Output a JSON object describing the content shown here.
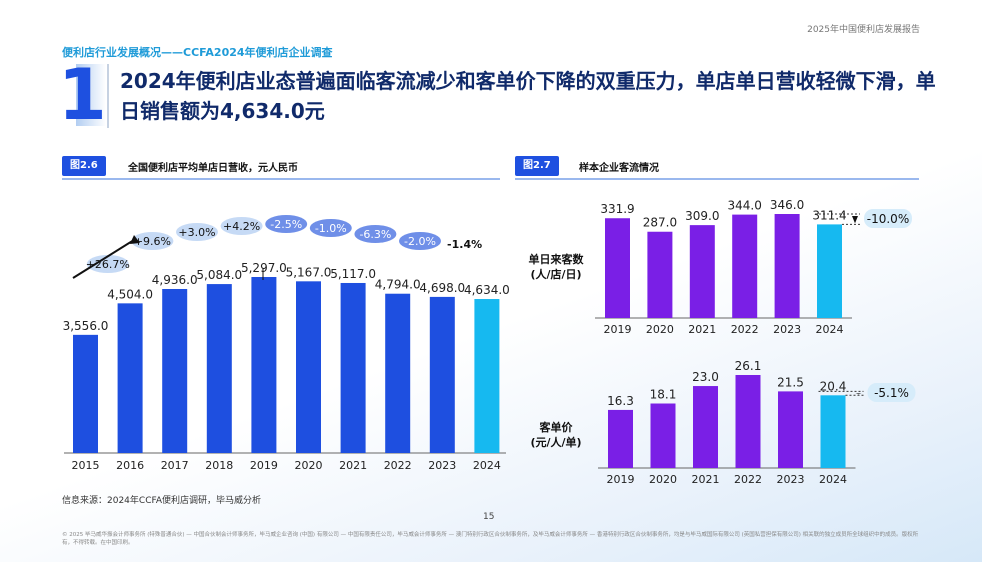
{
  "header": {
    "report_name": "2025年中国便利店发展报告",
    "kicker": "便利店行业发展概况——CCFA2024年便利店企业调查",
    "section_number": "1",
    "title": "2024年便利店业态普遍面临客流减少和客单价下降的双重压力，单店单日营收轻微下滑，单日销售额为4,634.0元"
  },
  "figures": {
    "fig1": {
      "tag": "图2.6",
      "title": "全国便利店平均单店日营收，元人民币"
    },
    "fig2": {
      "tag": "图2.7",
      "title": "样本企业客流情况",
      "row1_label": "单日来客数\n(人/店/日)",
      "row2_label": "客单价\n(元/人/单)"
    }
  },
  "source": "信息来源：2024年CCFA便利店调研，毕马威分析",
  "page_number": "15",
  "footer": "© 2025 毕马威华振会计师事务所 (特殊普通合伙) — 中国合伙制会计师事务所，毕马威企业咨询 (中国) 有限公司 — 中国有限责任公司，毕马威会计师事务所 — 澳门特别行政区合伙制事务所，及毕马威会计师事务所 — 香港特别行政区合伙制事务所，均是与毕马威国际有限公司 (英国私营担保有限公司) 相关联的独立成员所全球组织中的成员。版权所有，不得转载。在中国印刷。",
  "colors": {
    "bar_blue": "#1e4fe0",
    "bar_cyan": "#16b9f0",
    "bar_purple": "#7a1fe6",
    "bubble": "#c6daf5",
    "bubble_dark": "#6f8fe8"
  },
  "chart_data": [
    {
      "type": "bar",
      "title": "全国便利店平均单店日营收，元人民币",
      "categories": [
        "2015",
        "2016",
        "2017",
        "2018",
        "2019",
        "2020",
        "2021",
        "2022",
        "2023",
        "2024"
      ],
      "values": [
        3556.0,
        4504.0,
        4936.0,
        5084.0,
        5297.0,
        5167.0,
        5117.0,
        4794.0,
        4698.0,
        4634.0
      ],
      "value_labels": [
        "3,556.0",
        "4,504.0",
        "4,936.0",
        "5,084.0",
        "5,297.0",
        "5,167.0",
        "5,117.0",
        "4,794.0",
        "4,698.0",
        "4,634.0"
      ],
      "growth_labels": [
        "+26.7%",
        "+9.6%",
        "+3.0%",
        "+4.2%",
        "-2.5%",
        "-1.0%",
        "-6.3%",
        "-2.0%",
        "-1.4%"
      ],
      "ylim": [
        0,
        6000
      ]
    },
    {
      "type": "bar",
      "title": "单日来客数 (人/店/日)",
      "categories": [
        "2019",
        "2020",
        "2021",
        "2022",
        "2023",
        "2024"
      ],
      "values": [
        331.9,
        287.0,
        309.0,
        344.0,
        346.0,
        311.4
      ],
      "value_labels": [
        "331.9",
        "287.0",
        "309.0",
        "344.0",
        "346.0",
        "311.4"
      ],
      "change_label": "-10.0%",
      "ylim": [
        0,
        360
      ]
    },
    {
      "type": "bar",
      "title": "客单价 (元/人/单)",
      "categories": [
        "2019",
        "2020",
        "2021",
        "2022",
        "2023",
        "2024"
      ],
      "values": [
        16.3,
        18.1,
        23.0,
        26.1,
        21.5,
        20.4
      ],
      "value_labels": [
        "16.3",
        "18.1",
        "23.0",
        "26.1",
        "21.5",
        "20.4"
      ],
      "change_label": "-5.1%",
      "ylim": [
        0,
        27
      ]
    }
  ]
}
